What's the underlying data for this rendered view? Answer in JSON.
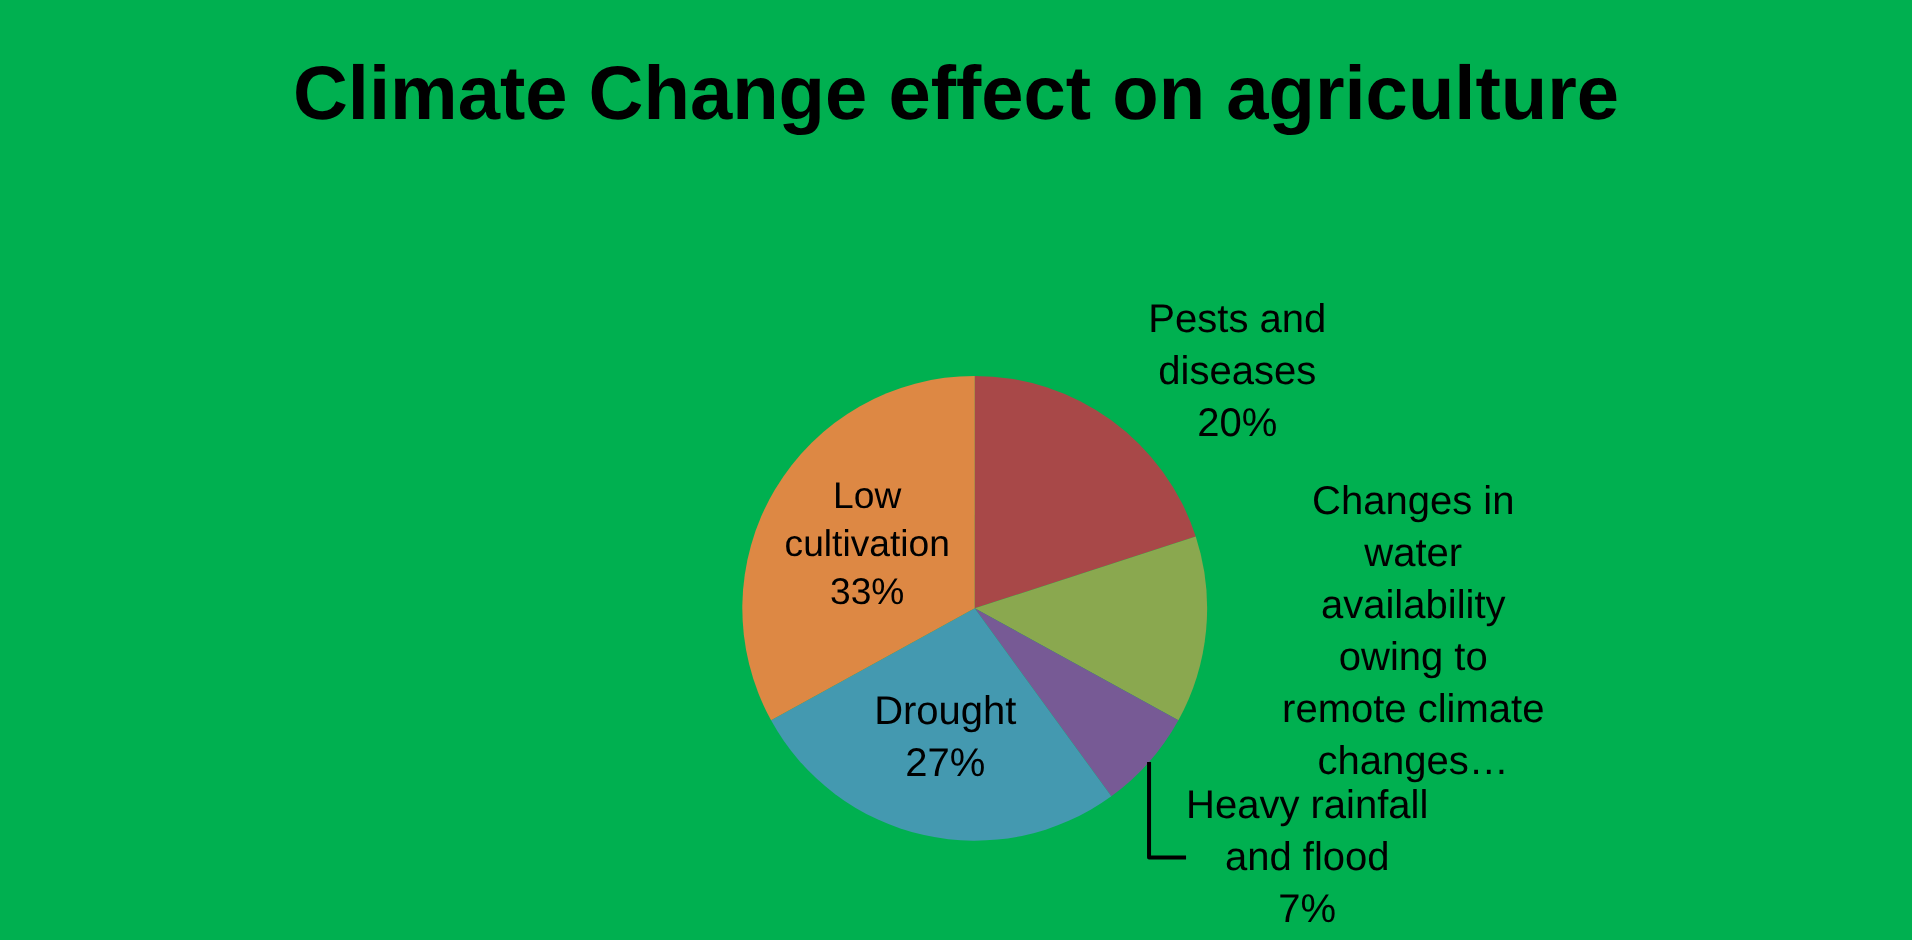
{
  "chart_data": {
    "type": "pie",
    "title": "Climate Change effect on agriculture",
    "categories": [
      "Pests and diseases",
      "Changes in water availability owing to remote climate changes…",
      "Heavy rainfall and flood",
      "Drought",
      "Low cultivation"
    ],
    "values": [
      20,
      13,
      7,
      27,
      33
    ],
    "value_labels": [
      "20%",
      null,
      "7%",
      "27%",
      "33%"
    ],
    "colors": [
      "#a84848",
      "#8aa84f",
      "#775a95",
      "#4499b0",
      "#dd8844"
    ]
  }
}
